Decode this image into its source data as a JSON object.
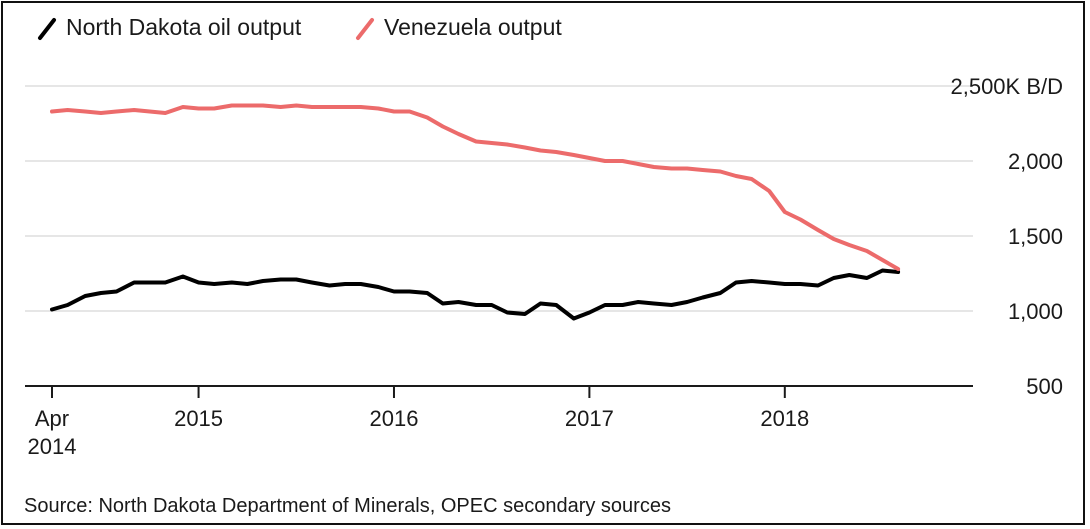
{
  "chart_data": {
    "type": "line",
    "legend_position": "top-left",
    "ylim": [
      500,
      2500
    ],
    "y_unit_label": "2,500K B/D",
    "y_ticks": [
      {
        "value": 2500,
        "label": "2,500K B/D"
      },
      {
        "value": 2000,
        "label": "2,000"
      },
      {
        "value": 1500,
        "label": "1,500"
      },
      {
        "value": 1000,
        "label": "1,000"
      },
      {
        "value": 500,
        "label": "500"
      }
    ],
    "grid": "horizontal",
    "x_ticks": [
      {
        "value": 2014.25,
        "label": [
          "Apr",
          "2014"
        ]
      },
      {
        "value": 2015.0,
        "label": [
          "2015"
        ]
      },
      {
        "value": 2016.0,
        "label": [
          "2016"
        ]
      },
      {
        "value": 2017.0,
        "label": [
          "2017"
        ]
      },
      {
        "value": 2018.0,
        "label": [
          "2018"
        ]
      }
    ],
    "xlim": [
      2014.25,
      2018.83
    ],
    "x_note": "monthly data, April 2014 to August 2018",
    "series": [
      {
        "name": "North Dakota oil output",
        "color": "#000000",
        "x": [
          2014.25,
          2014.33,
          2014.42,
          2014.5,
          2014.58,
          2014.67,
          2014.75,
          2014.83,
          2014.92,
          2015.0,
          2015.08,
          2015.17,
          2015.25,
          2015.33,
          2015.42,
          2015.5,
          2015.58,
          2015.67,
          2015.75,
          2015.83,
          2015.92,
          2016.0,
          2016.08,
          2016.17,
          2016.25,
          2016.33,
          2016.42,
          2016.5,
          2016.58,
          2016.67,
          2016.75,
          2016.83,
          2016.92,
          2017.0,
          2017.08,
          2017.17,
          2017.25,
          2017.33,
          2017.42,
          2017.5,
          2017.58,
          2017.67,
          2017.75,
          2017.83,
          2017.92,
          2018.0,
          2018.08,
          2018.17,
          2018.25,
          2018.33,
          2018.42,
          2018.5,
          2018.58
        ],
        "values": [
          1010,
          1040,
          1100,
          1120,
          1130,
          1190,
          1190,
          1190,
          1230,
          1190,
          1180,
          1190,
          1180,
          1200,
          1210,
          1210,
          1190,
          1170,
          1180,
          1180,
          1160,
          1130,
          1130,
          1120,
          1050,
          1060,
          1040,
          1040,
          990,
          980,
          1050,
          1040,
          950,
          990,
          1040,
          1040,
          1060,
          1050,
          1040,
          1060,
          1090,
          1120,
          1190,
          1200,
          1190,
          1180,
          1180,
          1170,
          1220,
          1240,
          1220,
          1270,
          1260
        ]
      },
      {
        "name": "Venezuela output",
        "color": "#ec6b6b",
        "x": [
          2014.25,
          2014.33,
          2014.42,
          2014.5,
          2014.58,
          2014.67,
          2014.75,
          2014.83,
          2014.92,
          2015.0,
          2015.08,
          2015.17,
          2015.25,
          2015.33,
          2015.42,
          2015.5,
          2015.58,
          2015.67,
          2015.75,
          2015.83,
          2015.92,
          2016.0,
          2016.08,
          2016.17,
          2016.25,
          2016.33,
          2016.42,
          2016.5,
          2016.58,
          2016.67,
          2016.75,
          2016.83,
          2016.92,
          2017.0,
          2017.08,
          2017.17,
          2017.25,
          2017.33,
          2017.42,
          2017.5,
          2017.58,
          2017.67,
          2017.75,
          2017.83,
          2017.92,
          2018.0,
          2018.08,
          2018.17,
          2018.25,
          2018.33,
          2018.42,
          2018.5,
          2018.58
        ],
        "values": [
          2330,
          2340,
          2330,
          2320,
          2330,
          2340,
          2330,
          2320,
          2360,
          2350,
          2350,
          2370,
          2370,
          2370,
          2360,
          2370,
          2360,
          2360,
          2360,
          2360,
          2350,
          2330,
          2330,
          2290,
          2230,
          2180,
          2130,
          2120,
          2110,
          2090,
          2070,
          2060,
          2040,
          2020,
          2000,
          2000,
          1980,
          1960,
          1950,
          1950,
          1940,
          1930,
          1900,
          1880,
          1800,
          1660,
          1610,
          1540,
          1480,
          1440,
          1400,
          1340,
          1280
        ]
      }
    ],
    "source": "Source: North Dakota Department of Minerals, OPEC secondary sources"
  }
}
